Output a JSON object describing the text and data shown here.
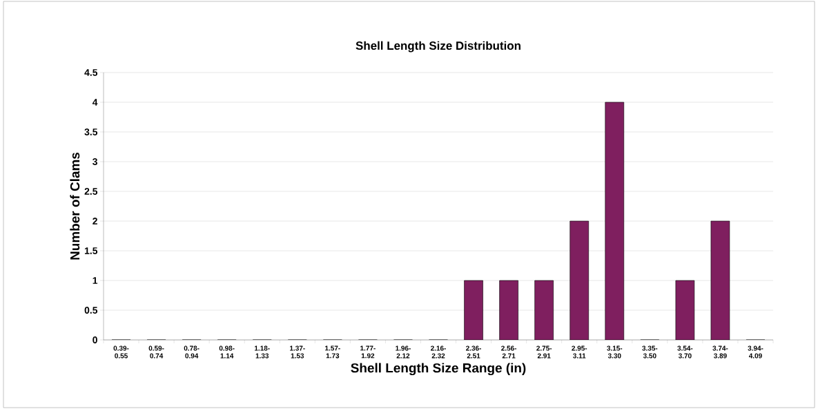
{
  "chart_data": {
    "type": "bar",
    "title": "Shell Length Size Distribution",
    "xlabel": "Shell Length Size Range (in)",
    "ylabel": "Number of Clams",
    "categories": [
      "0.39- 0.55",
      "0.59- 0.74",
      "0.78- 0.94",
      "0.98- 1.14",
      "1.18- 1.33",
      "1.37- 1.53",
      "1.57- 1.73",
      "1.77- 1.92",
      "1.96- 2.12",
      "2.16- 2.32",
      "2.36- 2.51",
      "2.56- 2.71",
      "2.75- 2.91",
      "2.95- 3.11",
      "3.15- 3.30",
      "3.35- 3.50",
      "3.54- 3.70",
      "3.74- 3.89",
      "3.94- 4.09"
    ],
    "values": [
      0,
      0,
      0,
      0,
      0,
      0,
      0,
      0,
      0,
      0,
      1,
      1,
      1,
      2,
      4,
      0,
      1,
      2,
      0
    ],
    "color": "#7f1f5f",
    "ylim": [
      0,
      4.5
    ],
    "yticks": [
      0,
      0.5,
      1,
      1.5,
      2,
      2.5,
      3,
      3.5,
      4,
      4.5
    ],
    "grid": "y"
  }
}
